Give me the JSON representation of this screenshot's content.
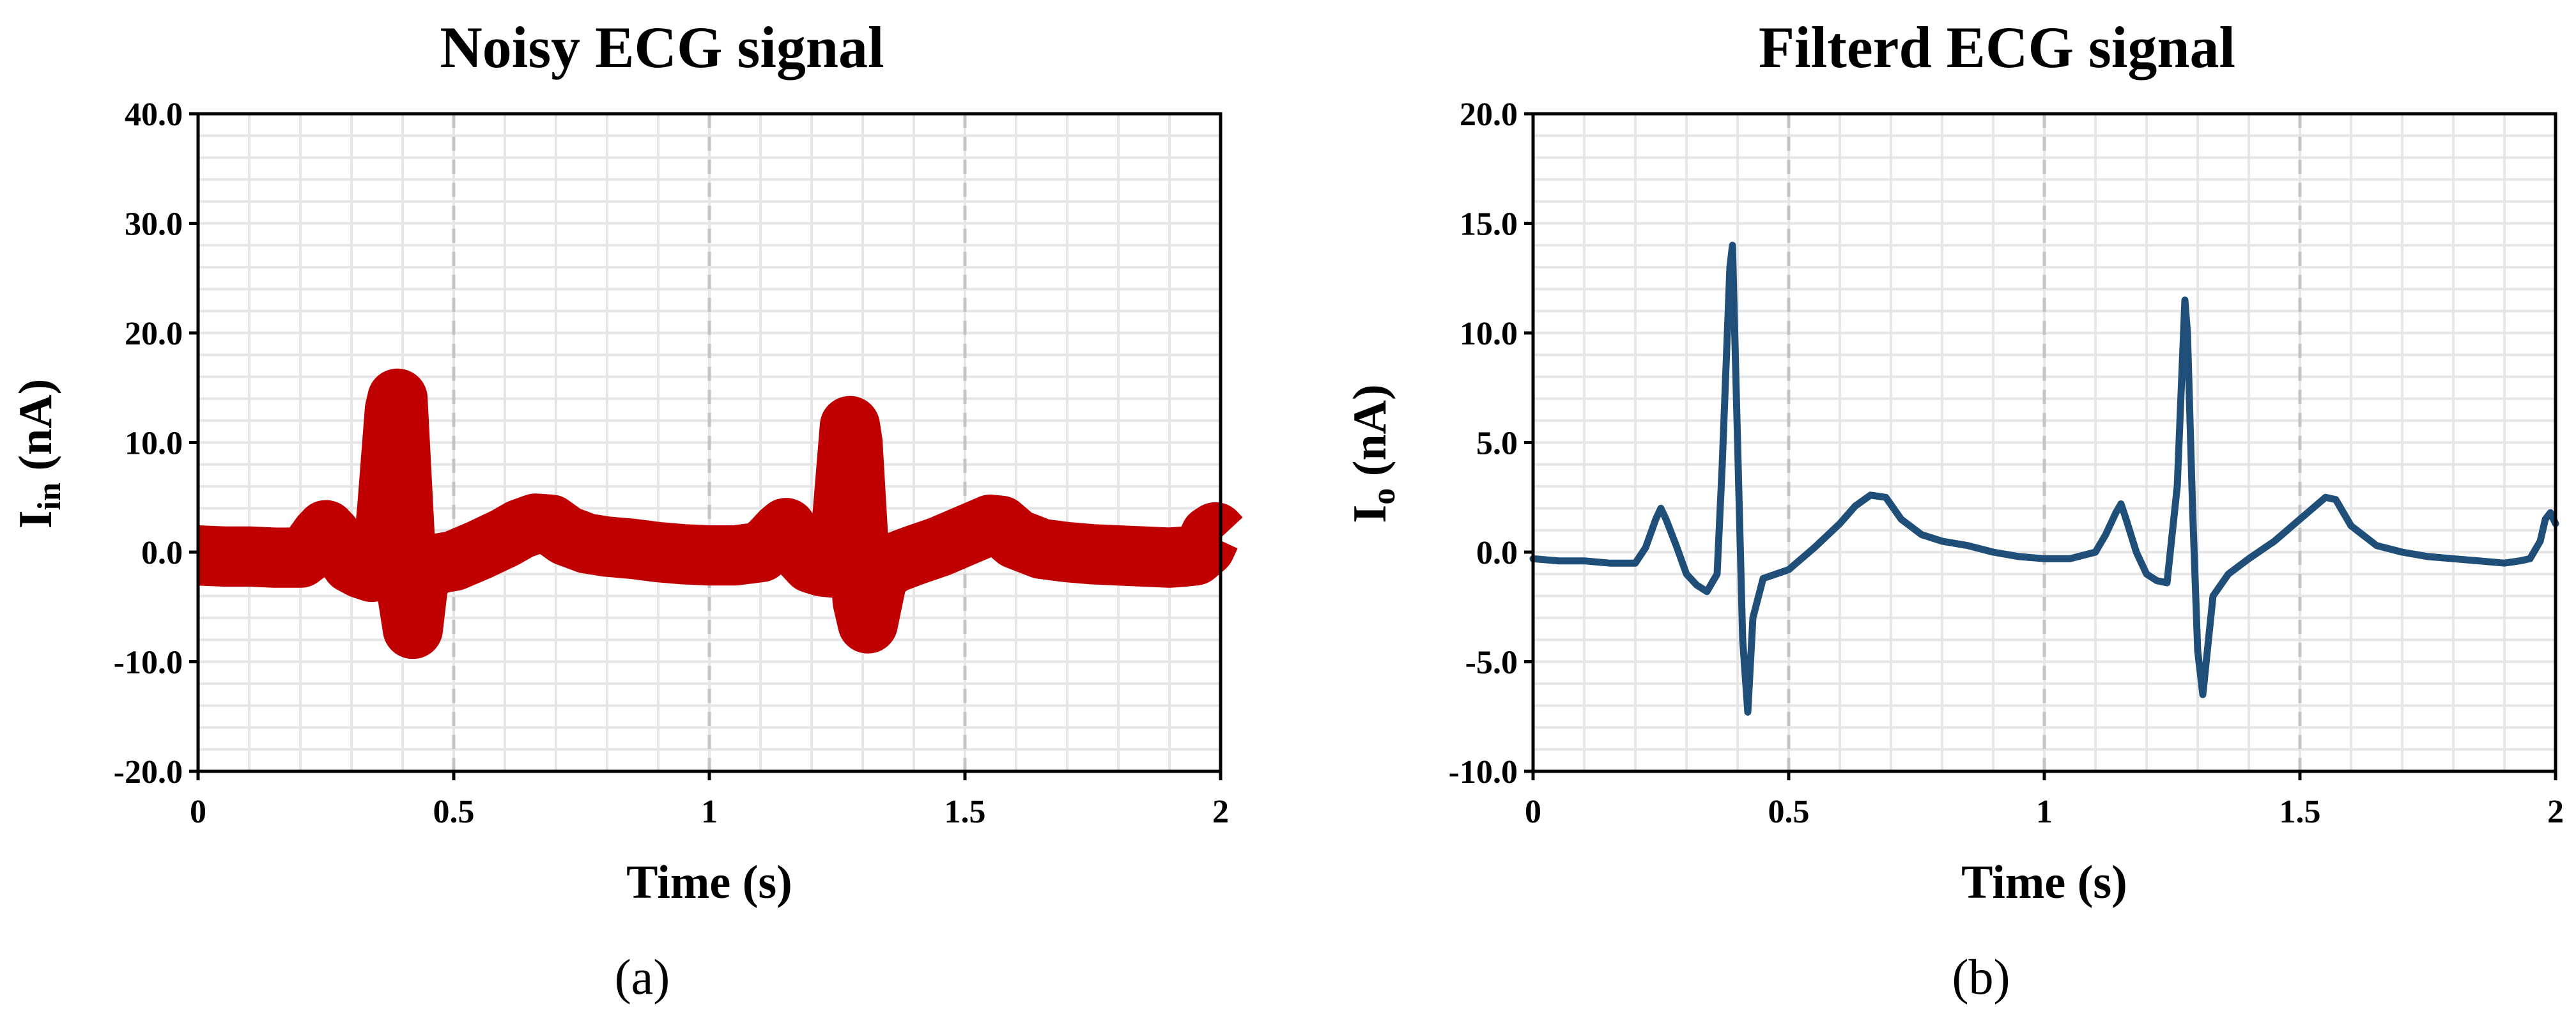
{
  "chart_data": [
    {
      "type": "line",
      "title": "Noisy ECG signal",
      "xlabel": "Time (s)",
      "ylabel": "I",
      "ylabel_sub": "in",
      "ylabel_unit": " (nA)",
      "caption": "(a)",
      "xlim": [
        0,
        2
      ],
      "ylim": [
        -20,
        40
      ],
      "xticks": [
        0,
        0.5,
        1,
        1.5,
        2
      ],
      "xtick_labels": [
        "0",
        "0.5",
        "1",
        "1.5",
        "2"
      ],
      "yticks": [
        -20,
        -10,
        0,
        10,
        20,
        30,
        40
      ],
      "ytick_labels": [
        "-20.0",
        "-10.0",
        "0.0",
        "10.0",
        "20.0",
        "30.0",
        "40.0"
      ],
      "grid": true,
      "color": "#c00000",
      "noise_band": 5.5,
      "series": [
        {
          "x": [
            0,
            0.05,
            0.1,
            0.15,
            0.2,
            0.22,
            0.24,
            0.25,
            0.26,
            0.28,
            0.3,
            0.32,
            0.34,
            0.36,
            0.37,
            0.385,
            0.39,
            0.4,
            0.41,
            0.42,
            0.43,
            0.45,
            0.5,
            0.55,
            0.6,
            0.63,
            0.66,
            0.69,
            0.72,
            0.76,
            0.8,
            0.85,
            0.9,
            0.95,
            1.0,
            1.05,
            1.1,
            1.12,
            1.14,
            1.15,
            1.16,
            1.18,
            1.2,
            1.22,
            1.24,
            1.26,
            1.275,
            1.28,
            1.29,
            1.3,
            1.31,
            1.33,
            1.36,
            1.4,
            1.45,
            1.5,
            1.53,
            1.55,
            1.57,
            1.6,
            1.65,
            1.7,
            1.75,
            1.8,
            1.85,
            1.9,
            1.93,
            1.95,
            1.97,
            1.98,
            1.99,
            2.0
          ],
          "y": [
            -0.3,
            -0.4,
            -0.4,
            -0.5,
            -0.5,
            0.2,
            1.5,
            2.0,
            1.5,
            0.3,
            -1.0,
            -1.5,
            -1.8,
            -1.0,
            4.0,
            13.0,
            14.0,
            5.0,
            -4.0,
            -7.0,
            -3.0,
            -1.2,
            -0.8,
            0.2,
            1.3,
            2.1,
            2.6,
            2.5,
            1.5,
            0.8,
            0.5,
            0.3,
            0.0,
            -0.2,
            -0.3,
            -0.3,
            0.0,
            0.8,
            1.8,
            2.2,
            1.5,
            0.0,
            -1.0,
            -1.3,
            -1.4,
            3.0,
            11.5,
            10.0,
            2.0,
            -4.5,
            -6.5,
            -2.0,
            -1.0,
            -0.3,
            0.5,
            1.5,
            2.1,
            2.5,
            2.4,
            1.2,
            0.3,
            0.0,
            -0.2,
            -0.3,
            -0.4,
            -0.5,
            -0.4,
            -0.3,
            0.5,
            1.5,
            1.8,
            1.3
          ]
        }
      ]
    },
    {
      "type": "line",
      "title": "Filterd ECG signal",
      "xlabel": "Time (s)",
      "ylabel": "I",
      "ylabel_sub": "o",
      "ylabel_unit": " (nA)",
      "caption": "(b)",
      "xlim": [
        0,
        2
      ],
      "ylim": [
        -10,
        20
      ],
      "xticks": [
        0,
        0.5,
        1,
        1.5,
        2
      ],
      "xtick_labels": [
        "0",
        "0.5",
        "1",
        "1.5",
        "2"
      ],
      "yticks": [
        -10,
        -5,
        0,
        5,
        10,
        15,
        20
      ],
      "ytick_labels": [
        "-10.0",
        "-5.0",
        "0.0",
        "5.0",
        "10.0",
        "15.0",
        "20.0"
      ],
      "grid": true,
      "color": "#1f4e79",
      "series": [
        {
          "x": [
            0,
            0.05,
            0.1,
            0.15,
            0.2,
            0.22,
            0.24,
            0.25,
            0.26,
            0.28,
            0.3,
            0.32,
            0.34,
            0.36,
            0.37,
            0.385,
            0.39,
            0.4,
            0.41,
            0.42,
            0.43,
            0.45,
            0.5,
            0.55,
            0.6,
            0.63,
            0.66,
            0.69,
            0.72,
            0.76,
            0.8,
            0.85,
            0.9,
            0.95,
            1.0,
            1.05,
            1.1,
            1.12,
            1.14,
            1.15,
            1.16,
            1.18,
            1.2,
            1.22,
            1.24,
            1.26,
            1.275,
            1.28,
            1.29,
            1.3,
            1.31,
            1.33,
            1.36,
            1.4,
            1.45,
            1.5,
            1.53,
            1.55,
            1.57,
            1.6,
            1.65,
            1.7,
            1.75,
            1.8,
            1.85,
            1.9,
            1.93,
            1.95,
            1.97,
            1.98,
            1.99,
            2.0
          ],
          "y": [
            -0.3,
            -0.4,
            -0.4,
            -0.5,
            -0.5,
            0.2,
            1.5,
            2.0,
            1.5,
            0.3,
            -1.0,
            -1.5,
            -1.8,
            -1.0,
            4.0,
            13.0,
            14.0,
            5.0,
            -4.0,
            -7.3,
            -3.0,
            -1.2,
            -0.8,
            0.2,
            1.3,
            2.1,
            2.6,
            2.5,
            1.5,
            0.8,
            0.5,
            0.3,
            0.0,
            -0.2,
            -0.3,
            -0.3,
            0.0,
            0.8,
            1.8,
            2.2,
            1.5,
            0.0,
            -1.0,
            -1.3,
            -1.4,
            3.0,
            11.5,
            10.0,
            2.0,
            -4.5,
            -6.5,
            -2.0,
            -1.0,
            -0.3,
            0.5,
            1.5,
            2.1,
            2.5,
            2.4,
            1.2,
            0.3,
            0.0,
            -0.2,
            -0.3,
            -0.4,
            -0.5,
            -0.4,
            -0.3,
            0.5,
            1.5,
            1.8,
            1.3
          ]
        }
      ]
    }
  ]
}
